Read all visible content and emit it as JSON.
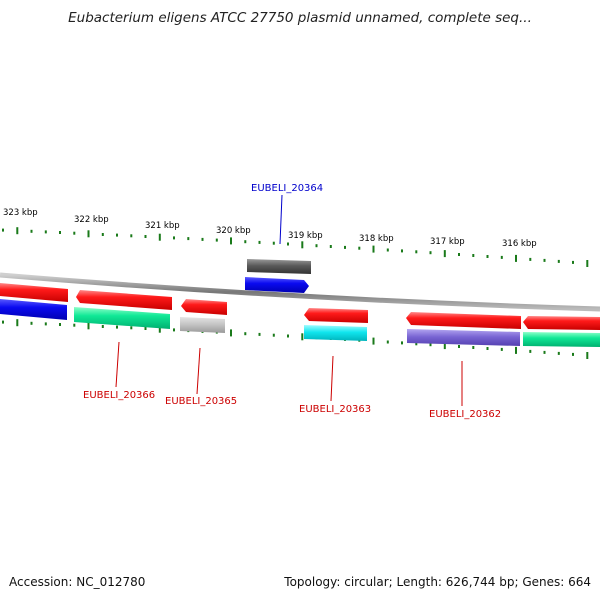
{
  "title": "Eubacterium eligens ATCC 27750 plasmid unnamed, complete seq...",
  "footer": {
    "accession": "Accession: NC_012780",
    "summary": "Topology: circular; Length: 626,744 bp; Genes: 664"
  },
  "scale_ticks": [
    "323 kbp",
    "322 kbp",
    "321 kbp",
    "320 kbp",
    "319 kbp",
    "318 kbp",
    "317 kbp",
    "316 kbp"
  ],
  "gene_labels": {
    "g20364": "EUBELI_20364",
    "g20366": "EUBELI_20366",
    "g20365": "EUBELI_20365",
    "g20363": "EUBELI_20363",
    "g20362": "EUBELI_20362"
  },
  "colors": {
    "label_blue": "#0000cc",
    "label_red": "#cc0000",
    "tick_green": "#1a7a1a",
    "gene_red": "#ee0000",
    "gene_blue": "#0000ee",
    "gene_green": "#00e08a",
    "gene_gray": "#bdbdbd",
    "gene_darkgray": "#555555",
    "gene_cyan": "#00e0e8",
    "gene_purple": "#7a66cc"
  }
}
